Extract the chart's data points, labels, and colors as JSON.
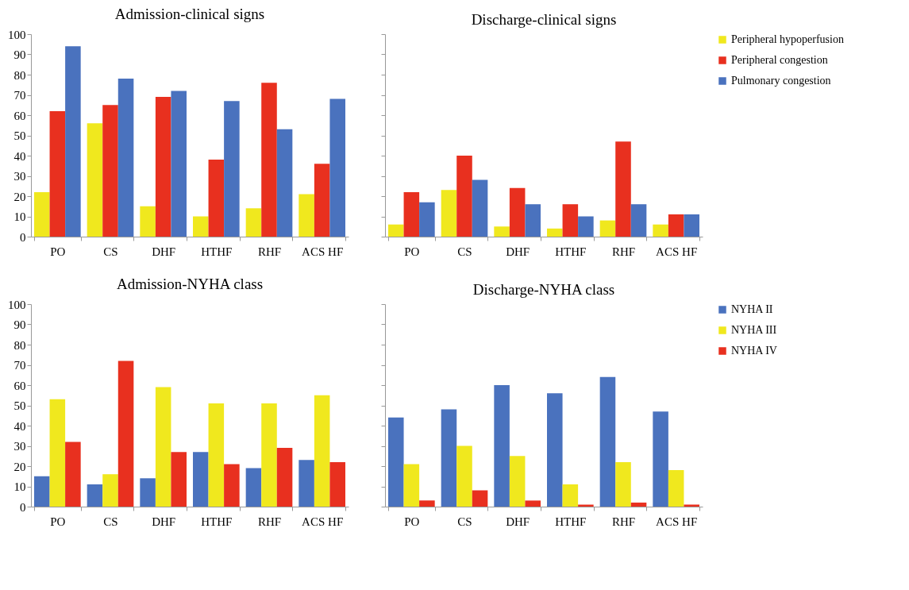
{
  "chart_data": [
    {
      "type": "bar",
      "title": "Admission-clinical signs",
      "categories": [
        "PO",
        "CS",
        "DHF",
        "HTHF",
        "RHF",
        "ACS HF"
      ],
      "ylim": [
        0,
        100
      ],
      "yticks": [
        0,
        10,
        20,
        30,
        40,
        50,
        60,
        70,
        80,
        90,
        100
      ],
      "grid": false,
      "series": [
        {
          "color": "#f0e81e",
          "values": [
            22,
            56,
            15,
            10,
            14,
            21
          ]
        },
        {
          "color": "#e8301f",
          "values": [
            62,
            65,
            69,
            38,
            76,
            36
          ]
        },
        {
          "color": "#4a72be",
          "values": [
            94,
            78,
            72,
            67,
            53,
            68
          ]
        }
      ]
    },
    {
      "type": "bar",
      "title": "Discharge-clinical signs",
      "categories": [
        "PO",
        "CS",
        "DHF",
        "HTHF",
        "RHF",
        "ACS HF"
      ],
      "ylim": [
        0,
        100
      ],
      "yticks": [
        0,
        10,
        20,
        30,
        40,
        50,
        60,
        70,
        80,
        90,
        100
      ],
      "grid": false,
      "tick_labels": "x",
      "legend": "right",
      "series": [
        {
          "name": "Peripheral hypoperfusion",
          "color": "#f0e81e",
          "values": [
            6,
            23,
            5,
            4,
            8,
            6
          ]
        },
        {
          "name": "Peripheral congestion",
          "color": "#e8301f",
          "values": [
            22,
            40,
            24,
            16,
            47,
            11
          ]
        },
        {
          "name": "Pulmonary congestion",
          "color": "#4a72be",
          "values": [
            17,
            28,
            16,
            10,
            16,
            11
          ]
        }
      ]
    },
    {
      "type": "bar",
      "title": "Admission-NYHA class",
      "categories": [
        "PO",
        "CS",
        "DHF",
        "HTHF",
        "RHF",
        "ACS HF"
      ],
      "ylim": [
        0,
        100
      ],
      "yticks": [
        0,
        10,
        20,
        30,
        40,
        50,
        60,
        70,
        80,
        90,
        100
      ],
      "grid": false,
      "series": [
        {
          "color": "#4a72be",
          "values": [
            15,
            11,
            14,
            27,
            19,
            23
          ]
        },
        {
          "color": "#f0e81e",
          "values": [
            53,
            16,
            59,
            51,
            51,
            55
          ]
        },
        {
          "color": "#e8301f",
          "values": [
            32,
            72,
            27,
            21,
            29,
            22
          ]
        }
      ]
    },
    {
      "type": "bar",
      "title": "Discharge-NYHA class",
      "categories": [
        "PO",
        "CS",
        "DHF",
        "HTHF",
        "RHF",
        "ACS HF"
      ],
      "ylim": [
        0,
        100
      ],
      "yticks": [
        0,
        10,
        20,
        30,
        40,
        50,
        60,
        70,
        80,
        90,
        100
      ],
      "grid": false,
      "tick_labels": "x",
      "legend": "right",
      "series": [
        {
          "name": "NYHA II",
          "color": "#4a72be",
          "values": [
            44,
            48,
            60,
            56,
            64,
            47
          ]
        },
        {
          "name": "NYHA III",
          "color": "#f0e81e",
          "values": [
            21,
            30,
            25,
            11,
            22,
            18
          ]
        },
        {
          "name": "NYHA IV",
          "color": "#e8301f",
          "values": [
            3,
            8,
            3,
            1,
            2,
            1
          ]
        }
      ]
    }
  ]
}
